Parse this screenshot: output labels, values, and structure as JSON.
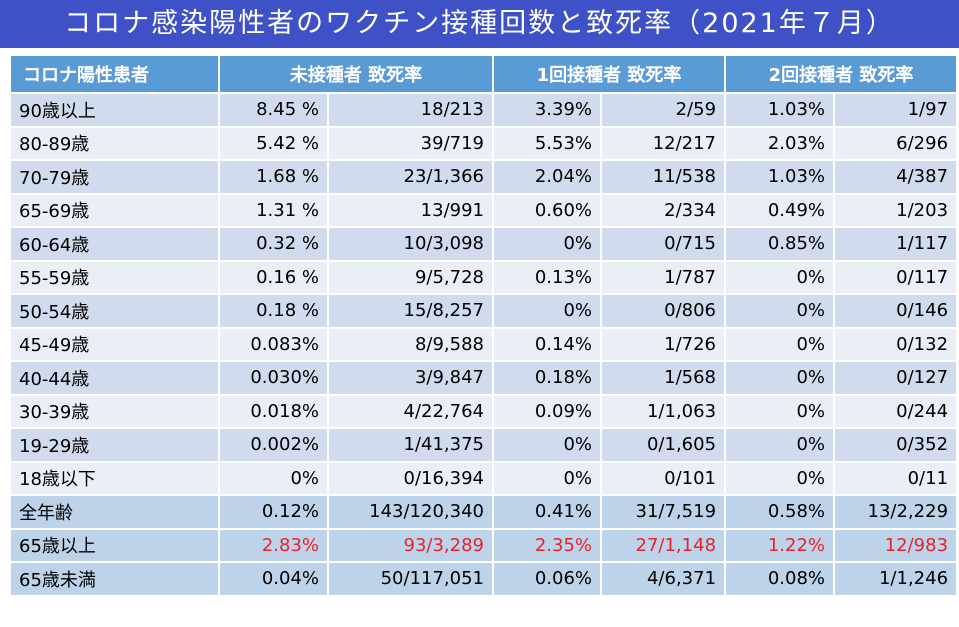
{
  "title": "コロナ感染陽性者のワクチン接種回数と致死率（2021年７月）",
  "colors": {
    "title_bg": "#3f51c6",
    "header_bg": "#5b9bd5",
    "row_odd": "#d0dcee",
    "row_even": "#e9eef7",
    "row_summary": "#bdd3ea",
    "highlight_text": "#e8222a"
  },
  "table": {
    "headers": {
      "group": "コロナ陽性患者",
      "unvaccinated": "未接種者 致死率",
      "one_dose": "1回接種者 致死率",
      "two_doses": "2回接種者 致死率"
    },
    "rows": [
      {
        "label": "90歳以上",
        "c1": "8.45 %",
        "c2": "18/213",
        "c3": "3.39%",
        "c4": "2/59",
        "c5": "1.03%",
        "c6": "1/97",
        "highlight": false,
        "summary": false
      },
      {
        "label": "80-89歳",
        "c1": "5.42 %",
        "c2": "39/719",
        "c3": "5.53%",
        "c4": "12/217",
        "c5": "2.03%",
        "c6": "6/296",
        "highlight": false,
        "summary": false
      },
      {
        "label": "70-79歳",
        "c1": "1.68 %",
        "c2": "23/1,366",
        "c3": "2.04%",
        "c4": "11/538",
        "c5": "1.03%",
        "c6": "4/387",
        "highlight": false,
        "summary": false
      },
      {
        "label": "65-69歳",
        "c1": "1.31 %",
        "c2": "13/991",
        "c3": "0.60%",
        "c4": "2/334",
        "c5": "0.49%",
        "c6": "1/203",
        "highlight": false,
        "summary": false
      },
      {
        "label": "60-64歳",
        "c1": "0.32 %",
        "c2": "10/3,098",
        "c3": "0%",
        "c4": "0/715",
        "c5": "0.85%",
        "c6": "1/117",
        "highlight": false,
        "summary": false
      },
      {
        "label": "55-59歳",
        "c1": "0.16 %",
        "c2": "9/5,728",
        "c3": "0.13%",
        "c4": "1/787",
        "c5": "0%",
        "c6": "0/117",
        "highlight": false,
        "summary": false
      },
      {
        "label": "50-54歳",
        "c1": "0.18 %",
        "c2": "15/8,257",
        "c3": "0%",
        "c4": "0/806",
        "c5": "0%",
        "c6": "0/146",
        "highlight": false,
        "summary": false
      },
      {
        "label": "45-49歳",
        "c1": "0.083%",
        "c2": "8/9,588",
        "c3": "0.14%",
        "c4": "1/726",
        "c5": "0%",
        "c6": "0/132",
        "highlight": false,
        "summary": false
      },
      {
        "label": "40-44歳",
        "c1": "0.030%",
        "c2": "3/9,847",
        "c3": "0.18%",
        "c4": "1/568",
        "c5": "0%",
        "c6": "0/127",
        "highlight": false,
        "summary": false
      },
      {
        "label": "30-39歳",
        "c1": "0.018%",
        "c2": "4/22,764",
        "c3": "0.09%",
        "c4": "1/1,063",
        "c5": "0%",
        "c6": "0/244",
        "highlight": false,
        "summary": false
      },
      {
        "label": "19-29歳",
        "c1": "0.002%",
        "c2": "1/41,375",
        "c3": "0%",
        "c4": "0/1,605",
        "c5": "0%",
        "c6": "0/352",
        "highlight": false,
        "summary": false
      },
      {
        "label": "18歳以下",
        "c1": "0%",
        "c2": "0/16,394",
        "c3": "0%",
        "c4": "0/101",
        "c5": "0%",
        "c6": "0/11",
        "highlight": false,
        "summary": false
      },
      {
        "label": "全年齢",
        "c1": "0.12%",
        "c2": "143/120,340",
        "c3": "0.41%",
        "c4": "31/7,519",
        "c5": "0.58%",
        "c6": "13/2,229",
        "highlight": false,
        "summary": true
      },
      {
        "label": "65歳以上",
        "c1": "2.83%",
        "c2": "93/3,289",
        "c3": "2.35%",
        "c4": "27/1,148",
        "c5": "1.22%",
        "c6": "12/983",
        "highlight": true,
        "summary": true
      },
      {
        "label": "65歳未満",
        "c1": "0.04%",
        "c2": "50/117,051",
        "c3": "0.06%",
        "c4": "4/6,371",
        "c5": "0.08%",
        "c6": "1/1,246",
        "highlight": false,
        "summary": true
      }
    ]
  }
}
